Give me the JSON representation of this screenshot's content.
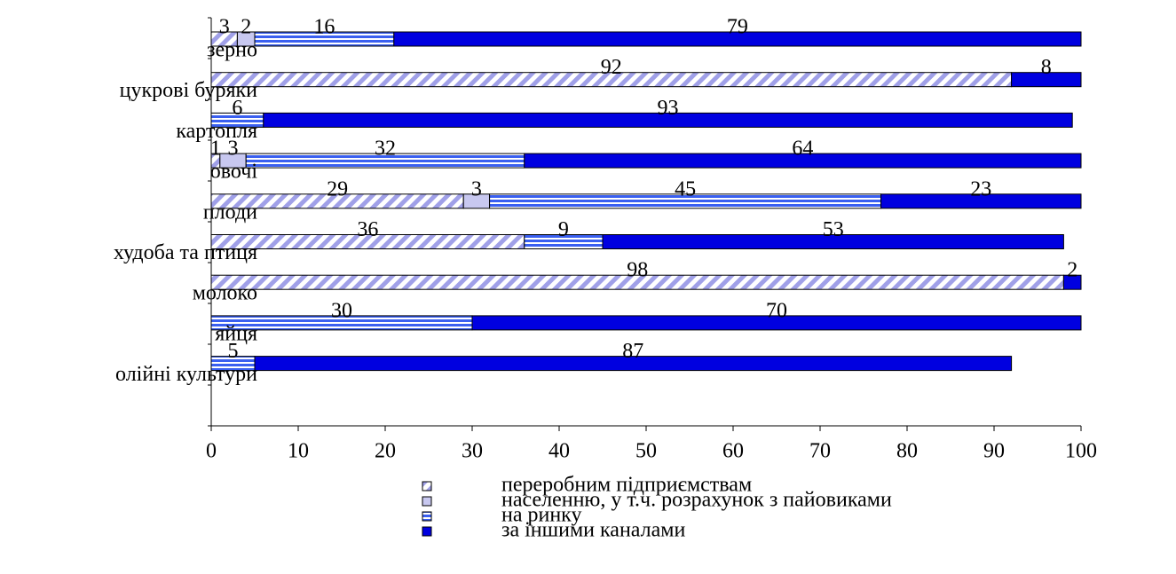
{
  "chart_data": {
    "type": "stacked-bar-horizontal",
    "categories": [
      "зерно",
      "цукрові буряки",
      "картопля",
      "овочі",
      "плоди",
      "худоба та птиця",
      "молоко",
      "яйця",
      "олійні культури"
    ],
    "series": [
      {
        "name": "переробним підприємствам",
        "color": "#a0a0e8",
        "values": [
          3,
          92,
          null,
          1,
          29,
          36,
          98,
          null,
          null
        ]
      },
      {
        "name": "населенню, у т.ч. розрахунок з пайовиками",
        "color": "#c8c8f0",
        "values": [
          2,
          null,
          null,
          3,
          3,
          null,
          null,
          null,
          null
        ]
      },
      {
        "name": "на ринку",
        "color": "#3a5ff0",
        "values": [
          16,
          null,
          6,
          32,
          45,
          9,
          null,
          30,
          5
        ]
      },
      {
        "name": "за іншими каналами",
        "color": "#0000e0",
        "values": [
          79,
          8,
          93,
          64,
          23,
          53,
          2,
          70,
          87
        ]
      }
    ],
    "xlim": [
      0,
      100
    ],
    "xticks": [
      0,
      10,
      20,
      30,
      40,
      50,
      60,
      70,
      80,
      90,
      100
    ]
  }
}
